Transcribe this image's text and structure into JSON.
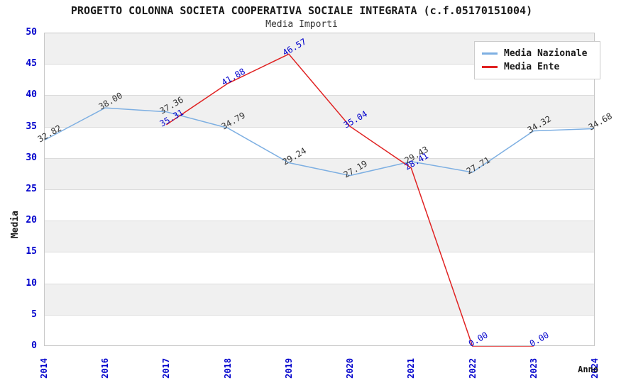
{
  "title": "PROGETTO COLONNA SOCIETA COOPERATIVA SOCIALE INTEGRATA (c.f.05170151004)",
  "subtitle": "Media Importi",
  "chart_data": {
    "type": "line",
    "categories": [
      "2014",
      "2016",
      "2017",
      "2018",
      "2019",
      "2020",
      "2021",
      "2022",
      "2023",
      "2024"
    ],
    "xlabel": "Anno",
    "ylabel": "Media",
    "ylim": [
      0,
      50
    ],
    "ytick_step": 5,
    "yticks": [
      0,
      5,
      10,
      15,
      20,
      25,
      30,
      35,
      40,
      45,
      50
    ],
    "grid": "horizontal-alternating-bands",
    "legend_position": "top-right",
    "series": [
      {
        "name": "Media Nazionale",
        "color": "#7dafe2",
        "label_color": "#333333",
        "values": [
          32.82,
          38.0,
          37.36,
          34.79,
          29.24,
          27.19,
          29.43,
          27.71,
          34.32,
          34.68
        ]
      },
      {
        "name": "Media Ente",
        "color": "#e02222",
        "label_color": "#0000cc",
        "values": [
          null,
          null,
          35.31,
          41.88,
          46.57,
          35.04,
          28.41,
          0.0,
          0.0,
          null
        ]
      }
    ]
  },
  "colors": {
    "tick_label": "#0000cc",
    "band_gray": "#f0f0f0",
    "band_white": "#ffffff",
    "gridline": "#dbdbdb",
    "plot_border": "#c8c8c8",
    "title_text": "#1a1a1a"
  }
}
